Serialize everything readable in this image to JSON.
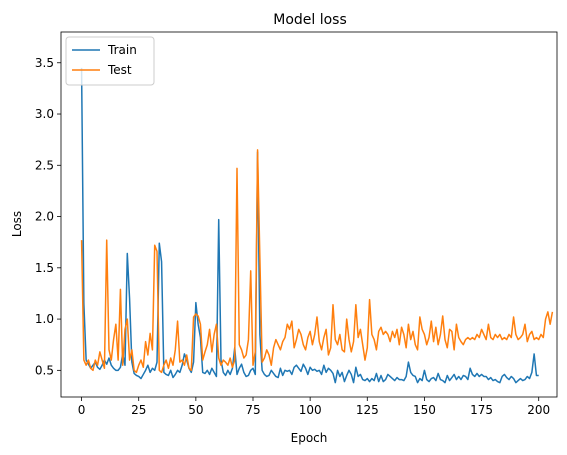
{
  "chart_data": {
    "type": "line",
    "title": "Model loss",
    "xlabel": "Epoch",
    "ylabel": "Loss",
    "xlim": [
      -9,
      208
    ],
    "ylim": [
      0.24,
      3.8
    ],
    "xticks": [
      0,
      25,
      50,
      75,
      100,
      125,
      150,
      175,
      200
    ],
    "xtick_labels": [
      "0",
      "25",
      "50",
      "75",
      "100",
      "125",
      "150",
      "175",
      "200"
    ],
    "yticks": [
      0.5,
      1.0,
      1.5,
      2.0,
      2.5,
      3.0,
      3.5
    ],
    "ytick_labels": [
      "0.5",
      "1.0",
      "1.5",
      "2.0",
      "2.5",
      "3.0",
      "3.5"
    ],
    "grid": false,
    "legend": "upper-left",
    "series": [
      {
        "name": "Train",
        "color": "#1f77b4",
        "values": [
          3.45,
          1.15,
          0.6,
          0.56,
          0.52,
          0.55,
          0.58,
          0.53,
          0.51,
          0.55,
          0.6,
          0.56,
          0.62,
          0.55,
          0.52,
          0.5,
          0.5,
          0.53,
          0.66,
          0.55,
          1.64,
          1.2,
          0.58,
          0.47,
          0.45,
          0.44,
          0.42,
          0.46,
          0.5,
          0.55,
          0.48,
          0.52,
          0.5,
          0.58,
          1.74,
          1.56,
          0.48,
          0.46,
          0.45,
          0.5,
          0.43,
          0.46,
          0.5,
          0.48,
          0.55,
          0.66,
          0.6,
          0.52,
          0.48,
          0.58,
          1.16,
          0.95,
          0.82,
          0.48,
          0.47,
          0.5,
          0.46,
          0.52,
          0.48,
          0.44,
          1.97,
          0.6,
          0.48,
          0.45,
          0.5,
          0.46,
          0.52,
          0.72,
          0.46,
          0.52,
          0.56,
          0.48,
          0.44,
          0.45,
          0.5,
          0.52,
          0.46,
          2.63,
          0.85,
          0.5,
          0.46,
          0.44,
          0.45,
          0.5,
          0.47,
          0.44,
          0.43,
          0.52,
          0.45,
          0.5,
          0.49,
          0.5,
          0.46,
          0.53,
          0.55,
          0.52,
          0.49,
          0.56,
          0.52,
          0.46,
          0.53,
          0.5,
          0.51,
          0.49,
          0.5,
          0.46,
          0.55,
          0.48,
          0.52,
          0.5,
          0.47,
          0.38,
          0.5,
          0.44,
          0.48,
          0.39,
          0.45,
          0.5,
          0.46,
          0.38,
          0.53,
          0.44,
          0.46,
          0.41,
          0.4,
          0.42,
          0.39,
          0.42,
          0.4,
          0.47,
          0.39,
          0.45,
          0.39,
          0.41,
          0.46,
          0.44,
          0.42,
          0.4,
          0.43,
          0.41,
          0.41,
          0.4,
          0.44,
          0.58,
          0.48,
          0.45,
          0.44,
          0.38,
          0.42,
          0.4,
          0.5,
          0.41,
          0.39,
          0.42,
          0.43,
          0.4,
          0.47,
          0.41,
          0.4,
          0.38,
          0.45,
          0.4,
          0.43,
          0.46,
          0.41,
          0.44,
          0.41,
          0.45,
          0.44,
          0.41,
          0.52,
          0.46,
          0.44,
          0.47,
          0.44,
          0.46,
          0.44,
          0.44,
          0.41,
          0.43,
          0.4,
          0.41,
          0.39,
          0.38,
          0.44,
          0.46,
          0.43,
          0.41,
          0.44,
          0.42,
          0.38,
          0.4,
          0.42,
          0.4,
          0.41,
          0.44,
          0.42,
          0.48,
          0.66,
          0.45,
          0.45
        ]
      },
      {
        "name": "Test",
        "color": "#ff7f0e",
        "values": [
          1.77,
          0.6,
          0.55,
          0.6,
          0.52,
          0.5,
          0.6,
          0.55,
          0.68,
          0.6,
          0.52,
          1.77,
          0.7,
          0.6,
          0.8,
          0.95,
          0.6,
          1.29,
          0.55,
          0.9,
          1.0,
          0.6,
          0.7,
          0.5,
          0.48,
          0.55,
          0.6,
          0.53,
          0.78,
          0.65,
          0.86,
          0.7,
          1.72,
          1.66,
          0.5,
          0.48,
          0.55,
          0.6,
          0.52,
          0.62,
          0.55,
          0.7,
          0.98,
          0.58,
          0.6,
          0.55,
          0.65,
          0.52,
          0.5,
          1.02,
          1.05,
          1.03,
          0.95,
          0.6,
          0.68,
          0.75,
          0.9,
          0.68,
          0.85,
          0.95,
          0.62,
          0.55,
          0.6,
          0.58,
          0.55,
          0.62,
          0.53,
          0.6,
          2.47,
          0.75,
          0.7,
          0.62,
          0.65,
          0.8,
          1.47,
          0.55,
          0.68,
          2.65,
          1.6,
          0.58,
          0.62,
          0.7,
          0.65,
          0.55,
          0.72,
          0.8,
          0.75,
          0.7,
          0.78,
          0.82,
          0.95,
          0.9,
          0.98,
          0.72,
          0.8,
          0.9,
          0.85,
          0.75,
          0.7,
          0.82,
          0.88,
          0.75,
          0.85,
          1.02,
          0.78,
          0.7,
          0.82,
          0.9,
          0.65,
          0.72,
          1.14,
          0.8,
          0.75,
          0.85,
          0.7,
          0.68,
          1.0,
          0.8,
          0.68,
          0.78,
          1.14,
          0.82,
          0.9,
          0.75,
          0.6,
          0.72,
          1.19,
          0.85,
          0.8,
          0.7,
          0.88,
          0.92,
          0.85,
          0.88,
          0.85,
          0.78,
          0.88,
          0.82,
          0.9,
          0.75,
          0.92,
          0.85,
          0.72,
          0.95,
          0.8,
          0.88,
          0.75,
          0.7,
          1.02,
          0.9,
          0.85,
          0.75,
          0.82,
          0.98,
          0.78,
          0.92,
          0.75,
          0.85,
          1.03,
          0.8,
          0.72,
          0.9,
          0.88,
          0.7,
          0.95,
          0.82,
          0.78,
          0.75,
          0.8,
          0.82,
          0.8,
          0.82,
          0.8,
          0.85,
          0.82,
          0.9,
          0.85,
          0.8,
          0.95,
          0.82,
          0.8,
          0.85,
          0.82,
          0.85,
          0.8,
          0.82,
          0.8,
          0.85,
          0.82,
          1.02,
          0.85,
          0.8,
          0.82,
          0.85,
          0.95,
          0.78,
          0.85,
          0.88,
          0.8,
          0.82,
          0.8,
          0.85,
          0.82,
          1.0,
          1.07,
          0.95,
          1.07
        ]
      }
    ]
  }
}
